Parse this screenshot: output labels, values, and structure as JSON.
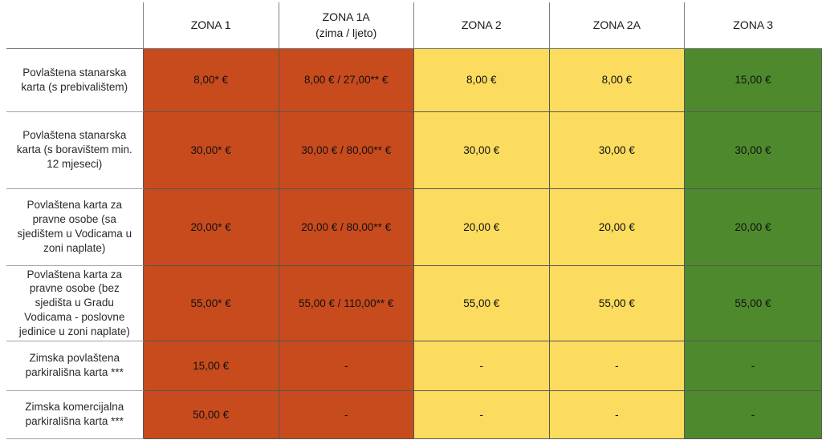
{
  "table": {
    "corner_label": "",
    "columns": [
      {
        "id": "zona-1",
        "label": "ZONA 1",
        "sublabel": "",
        "bg": "#c84b1d"
      },
      {
        "id": "zona-1a",
        "label": "ZONA 1A",
        "sublabel": "(zima / ljeto)",
        "bg": "#c84b1d"
      },
      {
        "id": "zona-2",
        "label": "ZONA 2",
        "sublabel": "",
        "bg": "#fcdc5e"
      },
      {
        "id": "zona-2a",
        "label": "ZONA 2A",
        "sublabel": "",
        "bg": "#fcdc5e"
      },
      {
        "id": "zona-3",
        "label": "ZONA 3",
        "sublabel": "",
        "bg": "#4e8a2d"
      }
    ],
    "rows": [
      {
        "label": "Povlaštena stanarska karta (s prebivalištem)",
        "values": [
          "8,00* €",
          "8,00 € / 27,00** €",
          "8,00 €",
          "8,00 €",
          "15,00 €"
        ]
      },
      {
        "label": "Povlaštena stanarska karta (s boravištem min. 12 mjeseci)",
        "values": [
          "30,00* €",
          "30,00 € / 80,00** €",
          "30,00 €",
          "30,00 €",
          "30,00 €"
        ]
      },
      {
        "label": "Povlaštena karta za pravne osobe (sa sjedištem u Vodicama u zoni naplate)",
        "values": [
          "20,00* €",
          "20,00 € / 80,00** €",
          "20,00 €",
          "20,00 €",
          "20,00 €"
        ]
      },
      {
        "label": "Povlaštena karta za pravne osobe (bez sjedišta u Gradu Vodicama - poslovne jedinice u zoni naplate)",
        "values": [
          "55,00* €",
          "55,00 € / 110,00** €",
          "55,00 €",
          "55,00 €",
          "55,00 €"
        ]
      },
      {
        "label": "Zimska povlaštena parkirališna karta ***",
        "values": [
          "15,00 €",
          "-",
          "-",
          "-",
          "-"
        ]
      },
      {
        "label": "Zimska komercijalna parkirališna karta ***",
        "values": [
          "50,00 €",
          "-",
          "-",
          "-",
          "-"
        ]
      }
    ]
  }
}
